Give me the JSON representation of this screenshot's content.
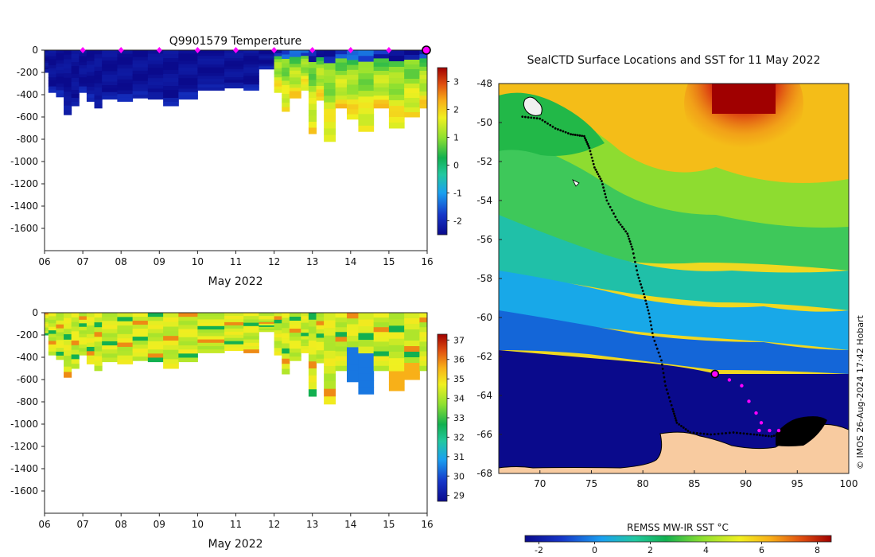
{
  "chart_data": [
    {
      "type": "heatmap",
      "panel": "temperature-profiles",
      "title": "Q9901579  Temperature",
      "xlabel": "May 2022",
      "ylabel": "",
      "x_ticks": [
        "06",
        "07",
        "08",
        "09",
        "10",
        "11",
        "12",
        "13",
        "14",
        "15",
        "16"
      ],
      "y_ticks": [
        "0",
        "-200",
        "-400",
        "-600",
        "-800",
        "-1000",
        "-1200",
        "-1400",
        "-1600"
      ],
      "xlim": [
        6,
        16
      ],
      "ylim": [
        -1800,
        0
      ],
      "profile_depths": [
        {
          "day": 6.0,
          "depth": 200
        },
        {
          "day": 6.1,
          "depth": 380
        },
        {
          "day": 6.3,
          "depth": 420
        },
        {
          "day": 6.5,
          "depth": 580
        },
        {
          "day": 6.7,
          "depth": 500
        },
        {
          "day": 6.9,
          "depth": 380
        },
        {
          "day": 7.1,
          "depth": 460
        },
        {
          "day": 7.3,
          "depth": 520
        },
        {
          "day": 7.5,
          "depth": 440
        },
        {
          "day": 7.9,
          "depth": 460
        },
        {
          "day": 8.3,
          "depth": 430
        },
        {
          "day": 8.7,
          "depth": 440
        },
        {
          "day": 9.1,
          "depth": 500
        },
        {
          "day": 9.5,
          "depth": 440
        },
        {
          "day": 10.0,
          "depth": 360
        },
        {
          "day": 10.7,
          "depth": 340
        },
        {
          "day": 11.2,
          "depth": 360
        },
        {
          "day": 11.6,
          "depth": 170
        },
        {
          "day": 12.0,
          "depth": 380
        },
        {
          "day": 12.2,
          "depth": 550
        },
        {
          "day": 12.4,
          "depth": 430
        },
        {
          "day": 12.7,
          "depth": 360
        },
        {
          "day": 12.9,
          "depth": 750
        },
        {
          "day": 13.1,
          "depth": 450
        },
        {
          "day": 13.3,
          "depth": 820
        },
        {
          "day": 13.6,
          "depth": 520
        },
        {
          "day": 13.9,
          "depth": 620
        },
        {
          "day": 14.2,
          "depth": 730
        },
        {
          "day": 14.6,
          "depth": 520
        },
        {
          "day": 15.0,
          "depth": 700
        },
        {
          "day": 15.4,
          "depth": 600
        },
        {
          "day": 15.8,
          "depth": 520
        }
      ],
      "markers_days": [
        7,
        8,
        9,
        10,
        11,
        12,
        13,
        14,
        15
      ],
      "current_marker_day": 16,
      "colorbar": {
        "ticks": [
          "-2",
          "-1",
          "0",
          "1",
          "2",
          "3"
        ],
        "range": [
          -2.5,
          3.5
        ]
      }
    },
    {
      "type": "heatmap",
      "panel": "salinity-profiles",
      "title": "",
      "xlabel": "May 2022",
      "ylabel": "",
      "x_ticks": [
        "06",
        "07",
        "08",
        "09",
        "10",
        "11",
        "12",
        "13",
        "14",
        "15",
        "16"
      ],
      "y_ticks": [
        "0",
        "-200",
        "-400",
        "-600",
        "-800",
        "-1000",
        "-1200",
        "-1400",
        "-1600"
      ],
      "xlim": [
        6,
        16
      ],
      "ylim": [
        -1800,
        0
      ],
      "colorbar": {
        "ticks": [
          "29",
          "30",
          "31",
          "32",
          "33",
          "34",
          "35",
          "36",
          "37"
        ],
        "range": [
          28.7,
          37.3
        ]
      }
    },
    {
      "type": "heatmap",
      "panel": "sst-map",
      "title": "SealCTD Surface Locations and SST for 11 May 2022",
      "x_ticks": [
        "70",
        "75",
        "80",
        "85",
        "90",
        "95",
        "100"
      ],
      "y_ticks": [
        "-48",
        "-50",
        "-52",
        "-54",
        "-56",
        "-58",
        "-60",
        "-62",
        "-64",
        "-66",
        "-68"
      ],
      "xlim": [
        66,
        100
      ],
      "ylim": [
        -68,
        -48
      ],
      "track": [
        [
          68.3,
          -49.7
        ],
        [
          70.0,
          -49.8
        ],
        [
          71.5,
          -50.3
        ],
        [
          73.0,
          -50.6
        ],
        [
          74.3,
          -50.7
        ],
        [
          74.8,
          -51.3
        ],
        [
          75.3,
          -52.3
        ],
        [
          76.0,
          -53.0
        ],
        [
          76.5,
          -54.0
        ],
        [
          77.5,
          -55.0
        ],
        [
          78.5,
          -55.7
        ],
        [
          79.0,
          -56.5
        ],
        [
          79.5,
          -57.8
        ],
        [
          80.1,
          -58.8
        ],
        [
          80.6,
          -59.8
        ],
        [
          81.0,
          -61.0
        ],
        [
          81.8,
          -62.2
        ],
        [
          82.2,
          -63.5
        ],
        [
          82.9,
          -64.7
        ],
        [
          83.3,
          -65.4
        ],
        [
          84.6,
          -65.9
        ],
        [
          86.6,
          -66.0
        ],
        [
          88.8,
          -65.9
        ],
        [
          90.8,
          -66.0
        ],
        [
          92.5,
          -66.1
        ],
        [
          93.9,
          -65.9
        ],
        [
          94.6,
          -65.9
        ]
      ],
      "recent_positions": [
        [
          88.4,
          -63.2
        ],
        [
          89.6,
          -63.5
        ],
        [
          90.3,
          -64.3
        ],
        [
          91.0,
          -64.9
        ],
        [
          91.5,
          -65.4
        ],
        [
          91.3,
          -65.8
        ],
        [
          92.3,
          -65.8
        ],
        [
          93.2,
          -65.8
        ]
      ],
      "current_position": [
        87.0,
        -62.9
      ],
      "colorbar": {
        "label": "REMSS MW-IR SST °C",
        "ticks": [
          "-2",
          "0",
          "2",
          "4",
          "6",
          "8"
        ],
        "range": [
          -2.5,
          8.5
        ]
      }
    }
  ],
  "credit": "© IMOS 26-Aug-2024 17:42 Hobart"
}
